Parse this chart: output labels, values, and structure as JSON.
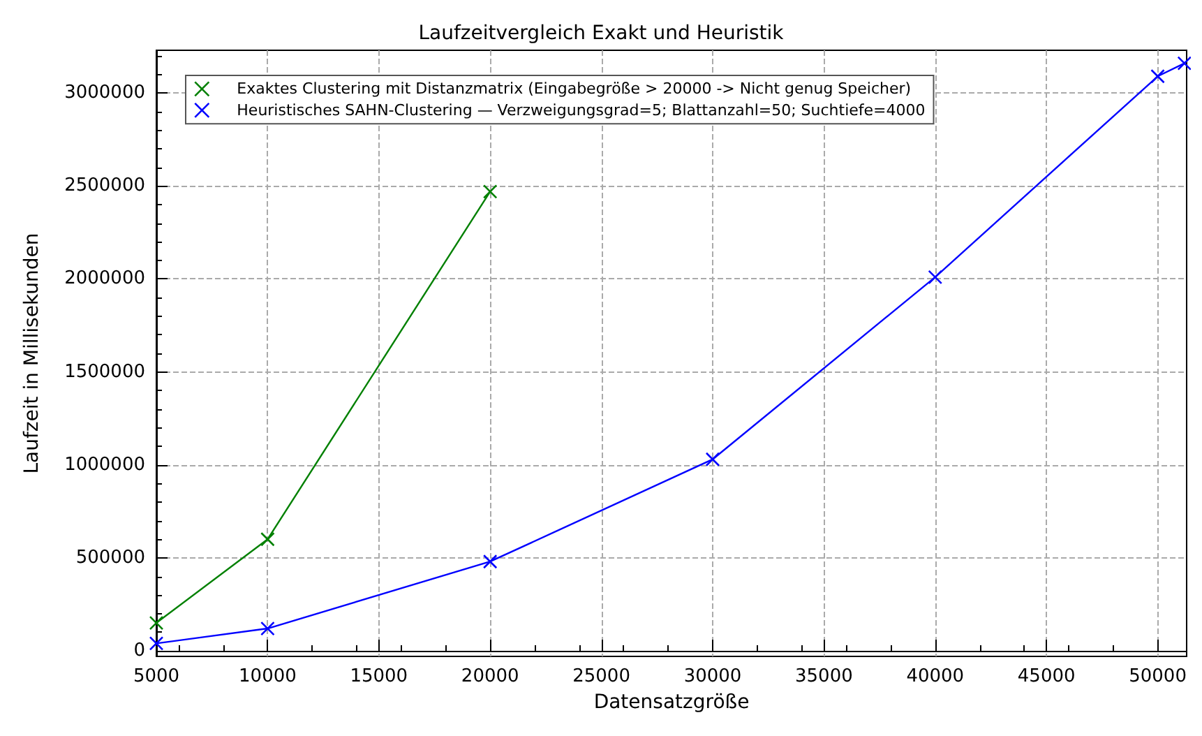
{
  "chart_data": {
    "type": "line",
    "title": "Laufzeitvergleich Exakt und Heuristik",
    "xlabel": "Datensatzgröße",
    "ylabel": "Laufzeit in Millisekunden",
    "series": [
      {
        "name": "Exaktes Clustering mit Distanzmatrix (Eingabegröße > 20000 -> Nicht genug Speicher)",
        "color": "#008000",
        "x": [
          5000,
          10000,
          20000
        ],
        "values": [
          150000,
          600000,
          2470000
        ]
      },
      {
        "name": "Heuristisches SAHN-Clustering — Verzweigungsgrad=5; Blattanzahl=50; Suchtiefe=4000",
        "color": "#0000ff",
        "x": [
          5000,
          10000,
          20000,
          30000,
          40000,
          50000,
          51200
        ],
        "values": [
          40000,
          120000,
          480000,
          1030000,
          2010000,
          3090000,
          3160000
        ]
      }
    ],
    "xlim": [
      5000,
      51300
    ],
    "xticks": [
      5000,
      10000,
      15000,
      20000,
      25000,
      30000,
      35000,
      40000,
      45000,
      50000
    ],
    "ylim": [
      -30000,
      3230000
    ],
    "yticks": [
      0,
      500000,
      1000000,
      1500000,
      2000000,
      2500000,
      3000000
    ],
    "grid": true,
    "legend": "top left",
    "marker": "cross",
    "line_style": "solid"
  }
}
